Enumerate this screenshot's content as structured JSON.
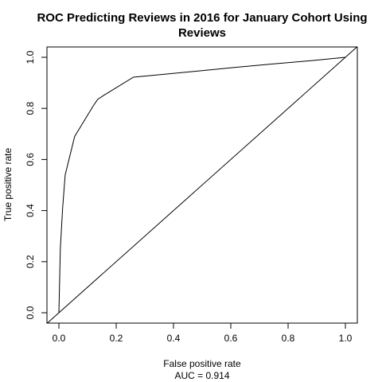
{
  "chart_data": {
    "type": "line",
    "title_line1": "ROC Predicting Reviews in 2016 for January Cohort Using",
    "title_line2": "Reviews",
    "xlabel": "False positive rate",
    "ylabel": "True positive rate",
    "annotation": "AUC = 0.914",
    "xlim": [
      0,
      1
    ],
    "ylim": [
      0,
      1
    ],
    "x_ticks": [
      0.0,
      0.2,
      0.4,
      0.6,
      0.8,
      1.0
    ],
    "x_tick_labels": [
      "0.0",
      "0.2",
      "0.4",
      "0.6",
      "0.8",
      "1.0"
    ],
    "y_ticks": [
      0.0,
      0.2,
      0.4,
      0.6,
      0.8,
      1.0
    ],
    "y_tick_labels": [
      "0.0",
      "0.2",
      "0.4",
      "0.6",
      "0.8",
      "1.0"
    ],
    "grid": false,
    "series": [
      {
        "x": [
          0.0,
          0.005,
          0.013,
          0.022,
          0.055,
          0.12,
          0.135,
          0.155,
          0.26,
          0.38,
          0.5,
          0.62,
          0.75,
          0.88,
          1.0
        ],
        "y": [
          0.0,
          0.25,
          0.41,
          0.54,
          0.69,
          0.81,
          0.835,
          0.85,
          0.922,
          0.935,
          0.948,
          0.961,
          0.974,
          0.987,
          1.0
        ]
      }
    ],
    "reference_line": {
      "x": [
        0,
        1
      ],
      "y": [
        0,
        1
      ]
    },
    "colors": {
      "line": "#000000",
      "background": "#ffffff"
    }
  }
}
